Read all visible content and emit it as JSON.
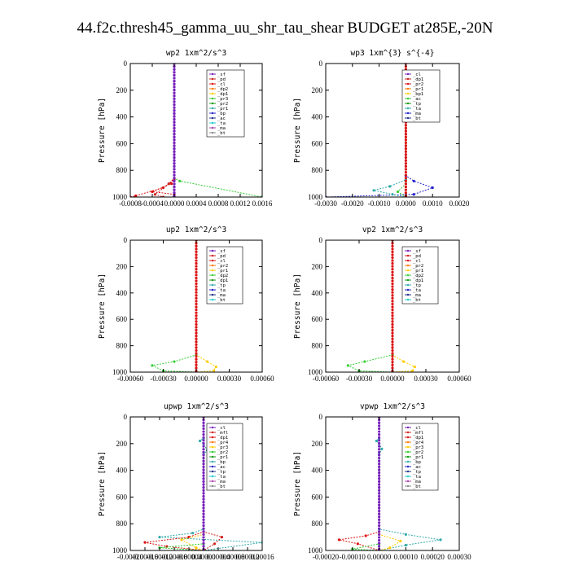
{
  "suptitle": "44.f2c.thresh45_gamma_uu_shr_tau_shear  BUDGET at285E,-20N",
  "chart_data": [
    {
      "type": "line",
      "title": "wp2   1xm^2/s^3",
      "ylabel": "Pressure [hPa]",
      "ylim": [
        1000,
        0
      ],
      "xlim": [
        -0.0008,
        0.0016
      ],
      "x_ticks": [
        "-0.0008",
        "-0.0004",
        "0.0000",
        "0.0004",
        "0.0008",
        "0.0012",
        "0.0016"
      ],
      "y_ticks": [
        "0",
        "200",
        "400",
        "600",
        "800",
        "1000"
      ],
      "legend": [
        "_sf",
        "_pd",
        "_cl",
        "_dp2",
        "_dp1",
        "_pr3",
        "_pr2",
        "_pr1",
        "_bp",
        "_ac",
        "_ta",
        "_ma",
        "_bt"
      ],
      "series": [
        {
          "name": "_pr1",
          "color": "#33cc33",
          "points": [
            [
              0,
              0
            ],
            [
              0,
              860
            ],
            [
              0.0001,
              880
            ],
            [
              0.0016,
              1000
            ]
          ]
        },
        {
          "name": "_dp1",
          "color": "#dd1111",
          "points": [
            [
              0,
              0
            ],
            [
              0,
              870
            ],
            [
              -0.0002,
              930
            ],
            [
              -0.0007,
              990
            ],
            [
              -0.0008,
              1000
            ]
          ]
        },
        {
          "name": "_pr3",
          "color": "#dd1111",
          "points": [
            [
              0,
              0
            ],
            [
              0,
              860
            ],
            [
              -5e-05,
              900
            ],
            [
              -0.0004,
              960
            ],
            [
              0,
              980
            ],
            [
              0,
              1000
            ]
          ]
        },
        {
          "name": "_dp2",
          "color": "#cc2222",
          "points": [
            [
              0,
              0
            ],
            [
              0,
              860
            ],
            [
              -0.0001,
              900
            ],
            [
              -0.00035,
              980
            ],
            [
              -0.0002,
              1000
            ]
          ]
        },
        {
          "name": "_sf",
          "color": "#7722bb",
          "points": [
            [
              0,
              0
            ],
            [
              0,
              1000
            ]
          ]
        },
        {
          "name": "_pd",
          "color": "#7722bb",
          "points": [
            [
              0,
              0
            ],
            [
              0,
              1000
            ]
          ]
        }
      ]
    },
    {
      "type": "line",
      "title": "wp3   1xm^{3} s^{-4}",
      "ylabel": "Pressure [hPa]",
      "ylim": [
        1000,
        0
      ],
      "xlim": [
        -0.003,
        0.002
      ],
      "x_ticks": [
        "-0.0030",
        "-0.0020",
        "-0.0010",
        "0.0000",
        "0.0010",
        "0.0020"
      ],
      "y_ticks": [
        "0",
        "200",
        "400",
        "600",
        "800",
        "1000"
      ],
      "legend": [
        "_cl",
        "_dp1",
        "_pr2",
        "_pr1",
        "_bp1",
        "_ac",
        "_tp",
        "_ta",
        "_ma",
        "_bt"
      ],
      "series": [
        {
          "name": "_ta",
          "color": "#2222cc",
          "points": [
            [
              0,
              0
            ],
            [
              0,
              840
            ],
            [
              0.0003,
              880
            ],
            [
              0.001,
              930
            ],
            [
              0.0003,
              980
            ],
            [
              -0.003,
              1000
            ]
          ]
        },
        {
          "name": "_tp",
          "color": "#33aaaa",
          "points": [
            [
              0,
              0
            ],
            [
              0,
              870
            ],
            [
              -0.0006,
              920
            ],
            [
              -0.0012,
              950
            ],
            [
              -0.0005,
              980
            ],
            [
              0,
              1000
            ]
          ]
        },
        {
          "name": "_ac",
          "color": "#33cc33",
          "points": [
            [
              0,
              0
            ],
            [
              0,
              900
            ],
            [
              -0.0003,
              960
            ],
            [
              0,
              1000
            ]
          ]
        },
        {
          "name": "_cl",
          "color": "#dd1111",
          "points": [
            [
              0,
              0
            ],
            [
              0,
              1000
            ]
          ]
        }
      ]
    },
    {
      "type": "line",
      "title": "up2   1xm^2/s^3",
      "ylabel": "Pressure [hPa]",
      "ylim": [
        1000,
        0
      ],
      "xlim": [
        -0.0006,
        0.0006
      ],
      "x_ticks": [
        "-0.00060",
        "-0.00030",
        "0.00000",
        "0.00030",
        "0.00060"
      ],
      "y_ticks": [
        "0",
        "200",
        "400",
        "600",
        "800",
        "1000"
      ],
      "legend": [
        "_sf",
        "_pd",
        "_cl",
        "_pr2",
        "_pr1",
        "_dp2",
        "_dp1",
        "_tp",
        "_ta",
        "_ma",
        "_bt"
      ],
      "series": [
        {
          "name": "_pr1",
          "color": "#ffcc00",
          "points": [
            [
              0,
              0
            ],
            [
              0,
              870
            ],
            [
              0.0001,
              920
            ],
            [
              0.00018,
              960
            ],
            [
              0.00016,
              990
            ],
            [
              0,
              1000
            ]
          ]
        },
        {
          "name": "_dp2",
          "color": "#33cc33",
          "points": [
            [
              0,
              0
            ],
            [
              0,
              870
            ],
            [
              -0.0002,
              920
            ],
            [
              -0.0004,
              950
            ],
            [
              -0.0003,
              990
            ],
            [
              0,
              1000
            ]
          ]
        },
        {
          "name": "_sf",
          "color": "#dd1111",
          "points": [
            [
              0,
              0
            ],
            [
              0,
              1000
            ]
          ]
        }
      ]
    },
    {
      "type": "line",
      "title": "vp2   1xm^2/s^3",
      "ylabel": "Pressure [hPa]",
      "ylim": [
        1000,
        0
      ],
      "xlim": [
        -0.0006,
        0.0006
      ],
      "x_ticks": [
        "-0.00060",
        "-0.00030",
        "0.00000",
        "0.00030",
        "0.00060"
      ],
      "y_ticks": [
        "0",
        "200",
        "400",
        "600",
        "800",
        "1000"
      ],
      "legend": [
        "_sf",
        "_pd",
        "_cl",
        "_pr2",
        "_pr1",
        "_dp2",
        "_dp1",
        "_tp",
        "_ta",
        "_ma",
        "_bt"
      ],
      "series": [
        {
          "name": "_pr1",
          "color": "#ffcc00",
          "points": [
            [
              0,
              0
            ],
            [
              0,
              870
            ],
            [
              0.0001,
              920
            ],
            [
              0.0002,
              960
            ],
            [
              0.00018,
              990
            ],
            [
              0,
              1000
            ]
          ]
        },
        {
          "name": "_dp2",
          "color": "#33cc33",
          "points": [
            [
              0,
              0
            ],
            [
              0,
              870
            ],
            [
              -0.00025,
              920
            ],
            [
              -0.0004,
              950
            ],
            [
              -0.0003,
              990
            ],
            [
              0,
              1000
            ]
          ]
        },
        {
          "name": "_sf",
          "color": "#dd1111",
          "points": [
            [
              0,
              0
            ],
            [
              0,
              1000
            ]
          ]
        }
      ]
    },
    {
      "type": "line",
      "title": "upwp   1xm^2/s^3",
      "ylabel": "Pressure [hPa]",
      "ylim": [
        1000,
        0
      ],
      "xlim": [
        -0.0002,
        0.00016
      ],
      "x_ticks": [
        "-0.00020",
        "-0.00016",
        "-0.00012",
        "-0.00008",
        "-0.00004",
        "0.00000",
        "0.00004",
        "0.00008",
        "0.00012",
        "0.00016"
      ],
      "y_ticks": [
        "0",
        "200",
        "400",
        "600",
        "800",
        "1000"
      ],
      "legend": [
        "_cl",
        "_mfl",
        "_dp1",
        "_pr4",
        "_pr3",
        "_pr2",
        "_pr1",
        "_bp",
        "_ac",
        "_tp",
        "_ta",
        "_ma",
        "_bt"
      ],
      "series": [
        {
          "name": "_tp",
          "color": "#33aaaa",
          "points": [
            [
              0,
              0
            ],
            [
              0,
              160
            ],
            [
              -1e-05,
              180
            ],
            [
              0,
              200
            ],
            [
              1e-05,
              250
            ],
            [
              0,
              280
            ],
            [
              0,
              840
            ],
            [
              -3e-05,
              870
            ],
            [
              -0.00012,
              900
            ],
            [
              0.00016,
              940
            ],
            [
              0,
              1000
            ]
          ]
        },
        {
          "name": "_pr2",
          "color": "#dd1111",
          "points": [
            [
              0,
              0
            ],
            [
              0,
              860
            ],
            [
              -4e-05,
              900
            ],
            [
              -0.00016,
              940
            ],
            [
              -0.0001,
              970
            ],
            [
              0,
              1000
            ]
          ]
        },
        {
          "name": "_pr3",
          "color": "#cc2222",
          "points": [
            [
              0,
              0
            ],
            [
              0,
              860
            ],
            [
              5e-05,
              900
            ],
            [
              3e-05,
              950
            ],
            [
              0,
              1000
            ]
          ]
        },
        {
          "name": "_pr1",
          "color": "#ffcc00",
          "points": [
            [
              0,
              0
            ],
            [
              0,
              880
            ],
            [
              -6e-05,
              920
            ],
            [
              -2e-05,
              980
            ],
            [
              0,
              1000
            ]
          ]
        },
        {
          "name": "_ac",
          "color": "#33cc33",
          "points": [
            [
              0,
              0
            ],
            [
              0,
              950
            ],
            [
              -0.00012,
              980
            ],
            [
              0,
              1000
            ]
          ]
        },
        {
          "name": "_cl",
          "color": "#7722bb",
          "points": [
            [
              0,
              0
            ],
            [
              0,
              1000
            ]
          ]
        }
      ]
    },
    {
      "type": "line",
      "title": "vpwp   1xm^2/s^3",
      "ylabel": "Pressure [hPa]",
      "ylim": [
        1000,
        0
      ],
      "xlim": [
        -0.0002,
        0.0003
      ],
      "x_ticks": [
        "-0.00020",
        "-0.00010",
        "0.00000",
        "0.00010",
        "0.00020",
        "0.00030"
      ],
      "y_ticks": [
        "0",
        "200",
        "400",
        "600",
        "800",
        "1000"
      ],
      "legend": [
        "_cl",
        "_mfl",
        "_dp1",
        "_pr4",
        "_pr3",
        "_pr2",
        "_pr1",
        "_bp",
        "_ac",
        "_tp",
        "_ta",
        "_ma",
        "_bt"
      ],
      "series": [
        {
          "name": "_tp",
          "color": "#33aaaa",
          "points": [
            [
              0,
              0
            ],
            [
              0,
              160
            ],
            [
              -1e-05,
              180
            ],
            [
              0,
              200
            ],
            [
              1e-05,
              240
            ],
            [
              0,
              280
            ],
            [
              0,
              840
            ],
            [
              0.0001,
              880
            ],
            [
              0.00023,
              920
            ],
            [
              0.0001,
              960
            ],
            [
              0,
              1000
            ]
          ]
        },
        {
          "name": "_pr2",
          "color": "#dd1111",
          "points": [
            [
              0,
              0
            ],
            [
              0,
              860
            ],
            [
              -5e-05,
              890
            ],
            [
              -0.00015,
              920
            ],
            [
              -8e-05,
              950
            ],
            [
              0,
              1000
            ]
          ]
        },
        {
          "name": "_pr1",
          "color": "#ffcc00",
          "points": [
            [
              0,
              0
            ],
            [
              0,
              880
            ],
            [
              8e-05,
              930
            ],
            [
              4e-05,
              980
            ],
            [
              0,
              1000
            ]
          ]
        },
        {
          "name": "_ac",
          "color": "#33cc33",
          "points": [
            [
              0,
              0
            ],
            [
              0,
              950
            ],
            [
              -0.0001,
              990
            ],
            [
              0,
              1000
            ]
          ]
        },
        {
          "name": "_cl",
          "color": "#7722bb",
          "points": [
            [
              0,
              0
            ],
            [
              0,
              1000
            ]
          ]
        }
      ]
    }
  ]
}
